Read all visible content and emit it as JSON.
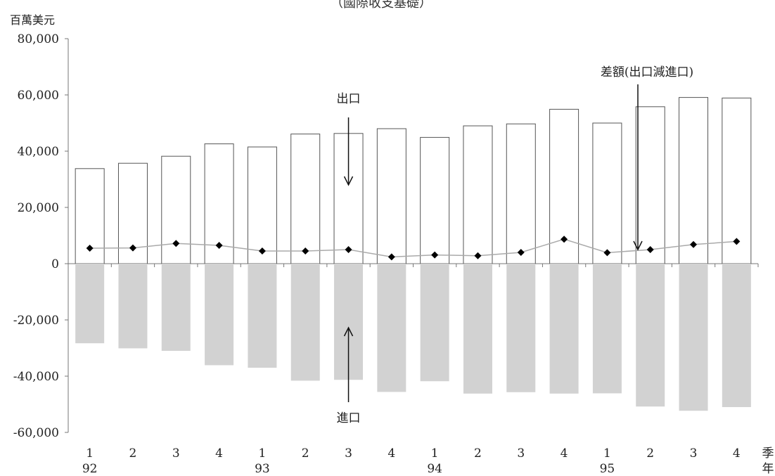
{
  "chart_data": {
    "type": "bar",
    "title": "",
    "top_note": "（國際收支基礎）",
    "y_unit_label": "百萬美元",
    "ylim": [
      -60000,
      80000
    ],
    "yticks": [
      80000,
      60000,
      40000,
      20000,
      0,
      -20000,
      -40000,
      -60000
    ],
    "ytick_labels": [
      "80,000",
      "60,000",
      "40,000",
      "20,000",
      "0",
      "-20,000",
      "-40,000",
      "-60,000"
    ],
    "quarter_labels": [
      "1",
      "2",
      "3",
      "4",
      "1",
      "2",
      "3",
      "4",
      "1",
      "2",
      "3",
      "4",
      "1",
      "2",
      "3",
      "4"
    ],
    "year_labels": [
      {
        "label": "92",
        "index": 0
      },
      {
        "label": "93",
        "index": 4
      },
      {
        "label": "94",
        "index": 8
      },
      {
        "label": "95",
        "index": 12
      }
    ],
    "x_axis_quarter_word": "季",
    "x_axis_year_word": "年",
    "series": [
      {
        "name": "出口",
        "type": "bar",
        "values": [
          33800,
          35700,
          38200,
          42600,
          41500,
          46100,
          46300,
          48000,
          44900,
          49000,
          49700,
          54900,
          50000,
          55800,
          59100,
          58900
        ]
      },
      {
        "name": "進口",
        "type": "bar",
        "values": [
          -28300,
          -30100,
          -31000,
          -36100,
          -37000,
          -41600,
          -41300,
          -45600,
          -41800,
          -46200,
          -45700,
          -46200,
          -46100,
          -50800,
          -52300,
          -51000
        ]
      },
      {
        "name": "差額(出口減進口)",
        "type": "line",
        "values": [
          5500,
          5600,
          7200,
          6500,
          4500,
          4500,
          5000,
          2400,
          3100,
          2800,
          4000,
          8700,
          3900,
          5000,
          6800,
          7900
        ]
      }
    ],
    "annotations": [
      {
        "text": "出口",
        "series": "出口"
      },
      {
        "text": "進口",
        "series": "進口"
      },
      {
        "text": "差額(出口減進口)",
        "series": "差額(出口減進口)"
      }
    ],
    "colors": {
      "export_fill": "#ffffff",
      "import_fill": "#d2d2d2",
      "bar_stroke": "#555555",
      "line": "#aaaaaa",
      "marker": "#000000"
    },
    "grid": false,
    "legend": "none"
  }
}
